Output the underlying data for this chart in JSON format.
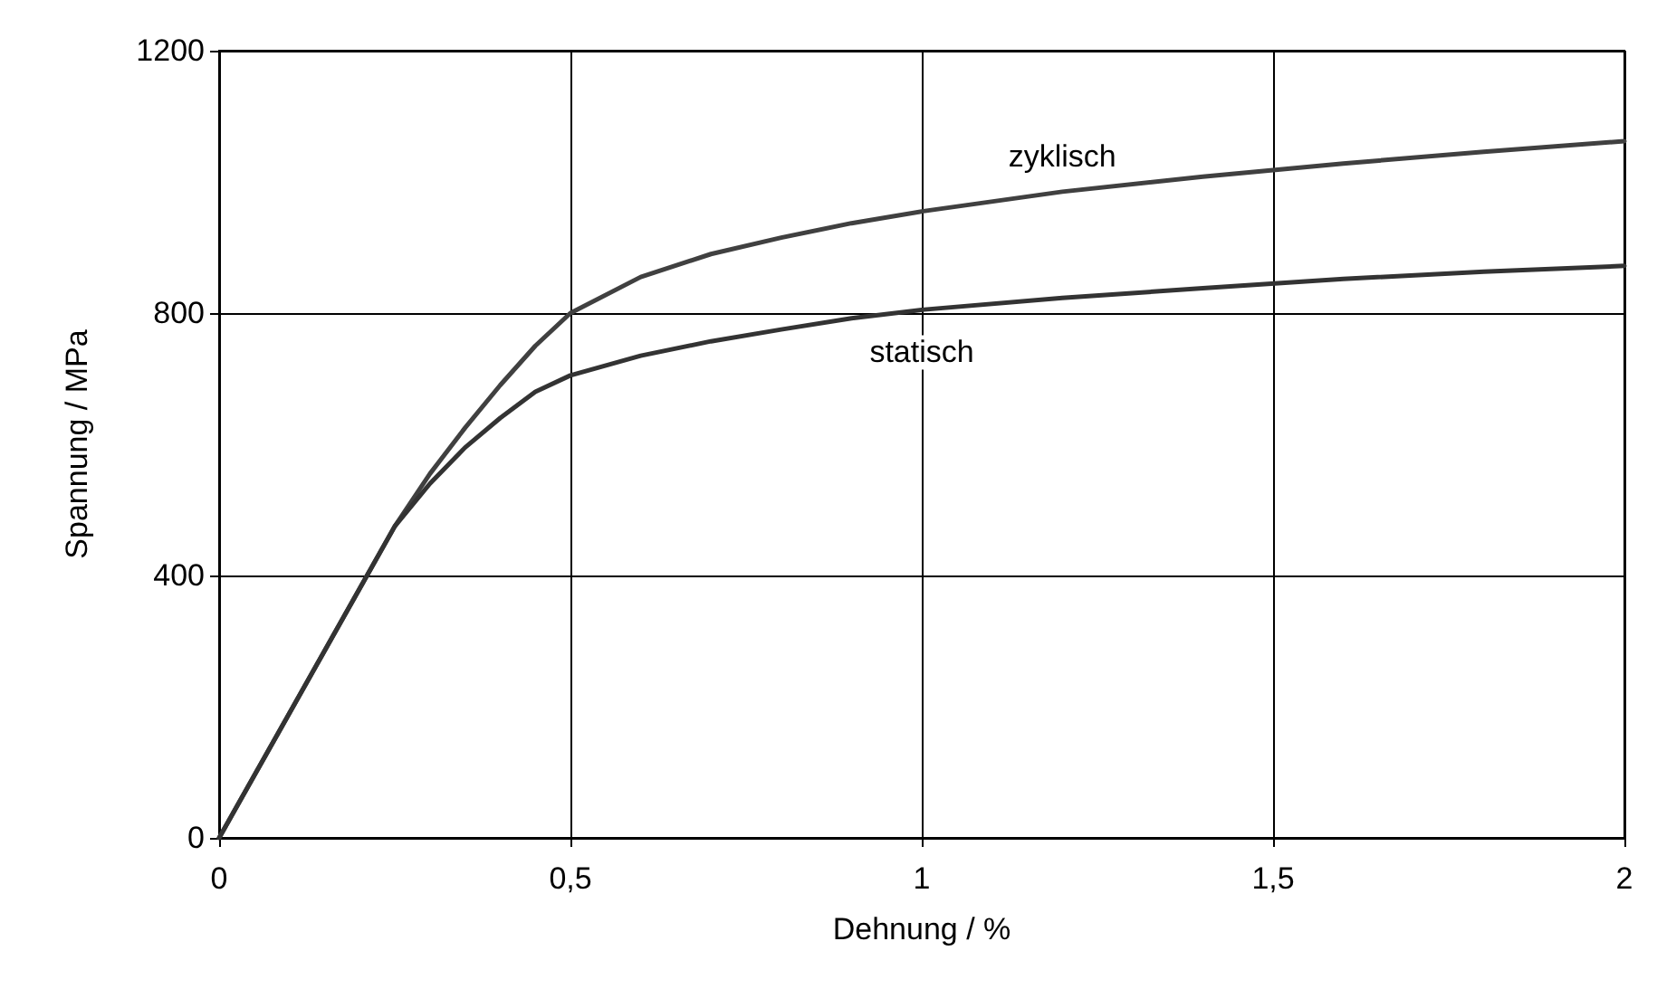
{
  "chart_data": {
    "type": "line",
    "xlabel": "Dehnung / %",
    "ylabel": "Spannung / MPa",
    "xlim": [
      0,
      2
    ],
    "xticks": [
      0,
      {
        "value": 0.5,
        "label": "0,5"
      },
      1,
      {
        "value": 1.5,
        "label": "1,5"
      },
      2
    ],
    "ylim": [
      0,
      1200
    ],
    "yticks": [
      0,
      400,
      800,
      1200
    ],
    "grid": true,
    "marker": "none",
    "line_style": "solid",
    "series": [
      {
        "name": "zyklisch",
        "color": "#404040",
        "x": [
          0,
          0.1,
          0.2,
          0.25,
          0.3,
          0.35,
          0.4,
          0.45,
          0.5,
          0.6,
          0.7,
          0.8,
          0.9,
          1,
          1.2,
          1.4,
          1.6,
          1.8,
          2
        ],
        "values": [
          0,
          190,
          380,
          475,
          555,
          625,
          690,
          750,
          800,
          855,
          890,
          915,
          937,
          955,
          985,
          1008,
          1028,
          1046,
          1062
        ]
      },
      {
        "name": "statisch",
        "color": "#333333",
        "x": [
          0,
          0.1,
          0.2,
          0.25,
          0.3,
          0.35,
          0.4,
          0.45,
          0.5,
          0.6,
          0.7,
          0.8,
          0.9,
          1,
          1.2,
          1.4,
          1.6,
          1.8,
          2
        ],
        "values": [
          0,
          190,
          380,
          475,
          540,
          595,
          640,
          680,
          705,
          735,
          757,
          775,
          792,
          805,
          823,
          838,
          852,
          863,
          872
        ]
      }
    ]
  }
}
